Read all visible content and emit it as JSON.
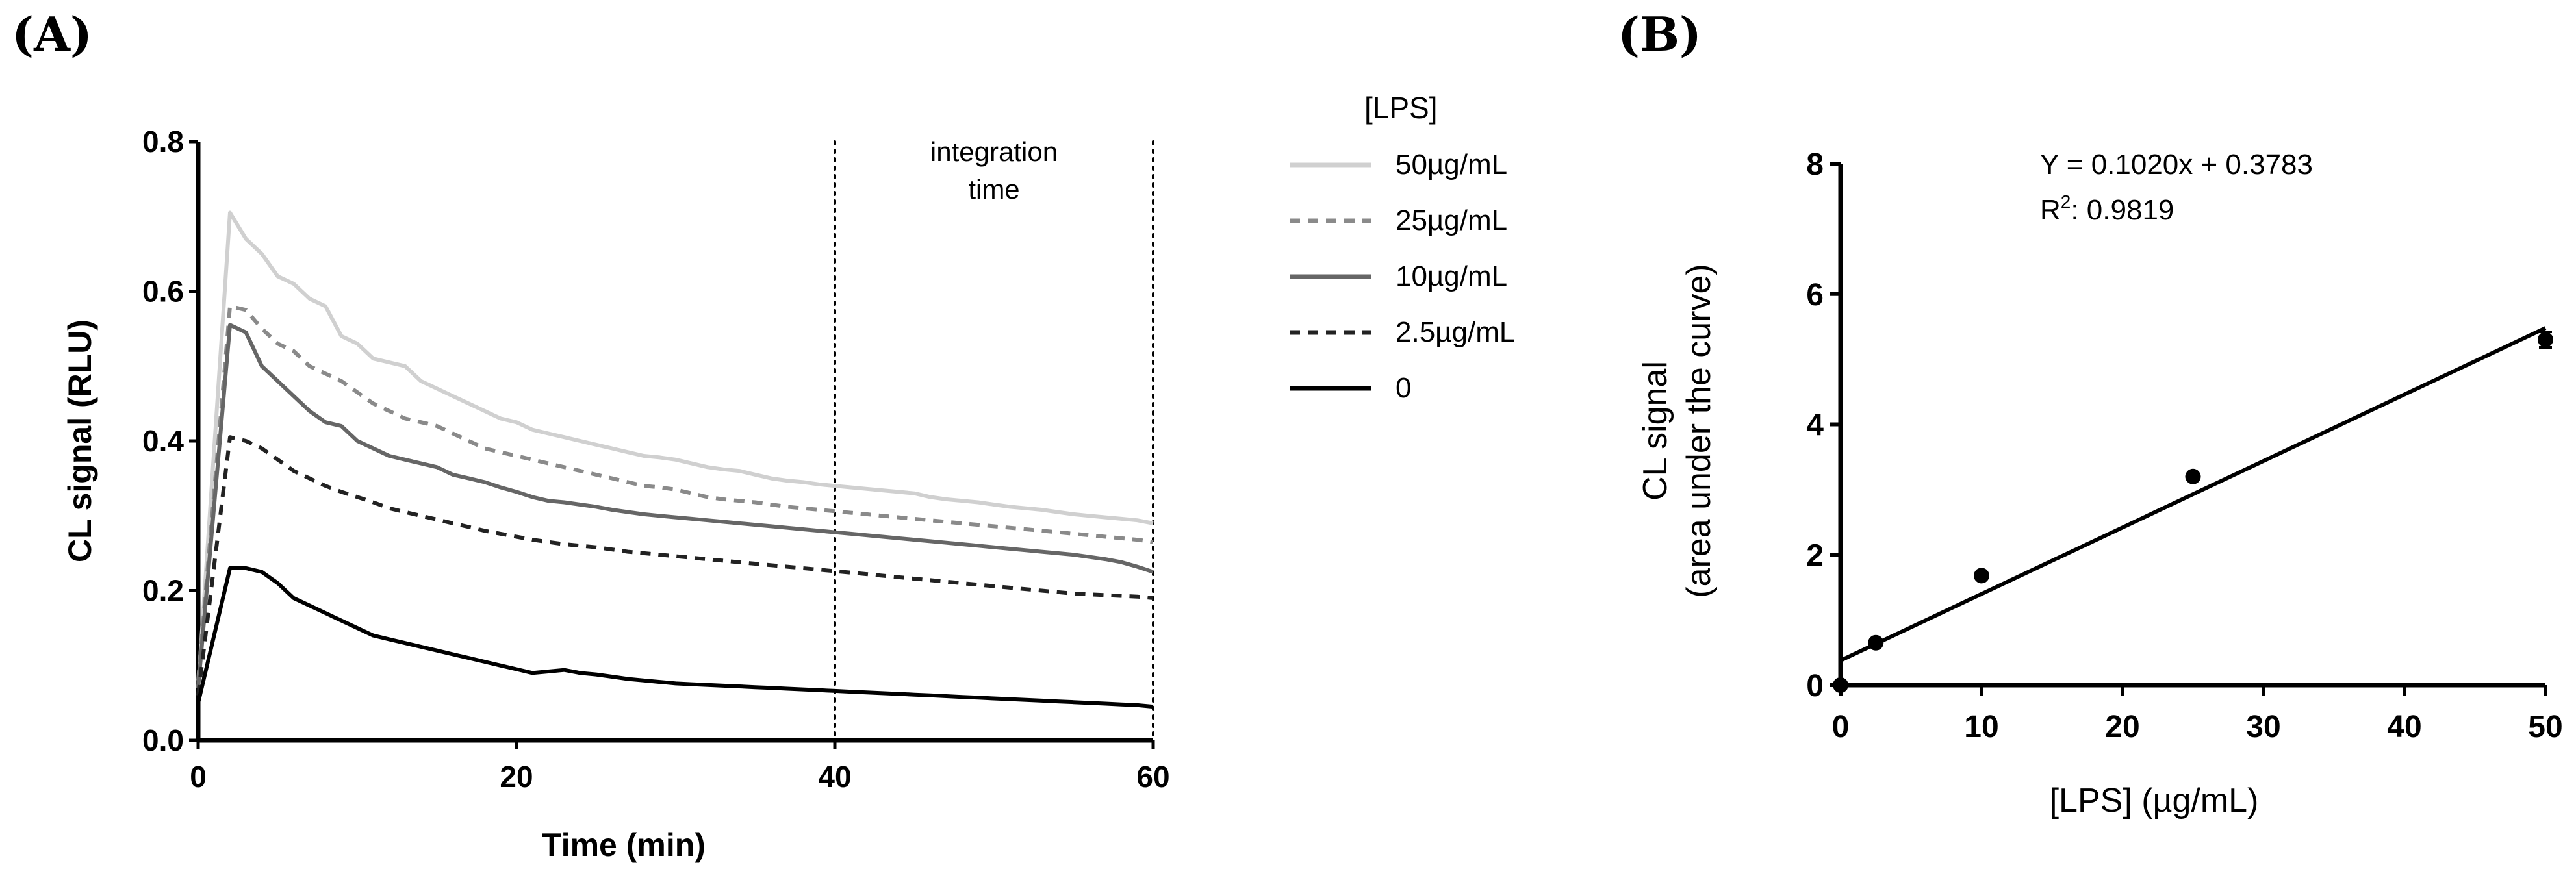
{
  "panels": {
    "a_label": "(A)",
    "b_label": "(B)"
  },
  "chart_data": [
    {
      "type": "line",
      "panel": "A",
      "xlabel": "Time (min)",
      "ylabel": "CL signal (RLU)",
      "xlim": [
        0,
        60
      ],
      "ylim": [
        0,
        0.8
      ],
      "x_ticks": [
        "0",
        "20",
        "40",
        "60"
      ],
      "y_ticks": [
        "0.0",
        "0.2",
        "0.4",
        "0.6",
        "0.8"
      ],
      "annotation": {
        "line1": "integration",
        "line2": "time",
        "x_start": 40,
        "x_end": 60
      },
      "legend_title": "[LPS]",
      "x": [
        0,
        2,
        3,
        4,
        5,
        6,
        7,
        8,
        9,
        10,
        11,
        12,
        13,
        14,
        15,
        16,
        17,
        18,
        19,
        20,
        21,
        22,
        23,
        24,
        25,
        26,
        27,
        28,
        29,
        30,
        31,
        32,
        33,
        34,
        35,
        36,
        37,
        38,
        39,
        40,
        41,
        42,
        43,
        44,
        45,
        46,
        47,
        48,
        49,
        50,
        51,
        52,
        53,
        54,
        55,
        56,
        57,
        58,
        59,
        60
      ],
      "series": [
        {
          "name": "50µg/mL",
          "color": "#d0d0d0",
          "dash": "solid",
          "values": [
            0.07,
            0.705,
            0.67,
            0.65,
            0.62,
            0.61,
            0.59,
            0.58,
            0.54,
            0.53,
            0.51,
            0.505,
            0.5,
            0.48,
            0.47,
            0.46,
            0.45,
            0.44,
            0.43,
            0.425,
            0.415,
            0.41,
            0.405,
            0.4,
            0.395,
            0.39,
            0.385,
            0.38,
            0.378,
            0.375,
            0.37,
            0.365,
            0.362,
            0.36,
            0.355,
            0.35,
            0.347,
            0.345,
            0.342,
            0.34,
            0.338,
            0.336,
            0.334,
            0.332,
            0.33,
            0.325,
            0.322,
            0.32,
            0.318,
            0.315,
            0.312,
            0.31,
            0.308,
            0.305,
            0.302,
            0.3,
            0.298,
            0.296,
            0.294,
            0.29
          ]
        },
        {
          "name": "25µg/mL",
          "color": "#8a8a8a",
          "dash": "dashed",
          "values": [
            0.08,
            0.58,
            0.575,
            0.55,
            0.53,
            0.52,
            0.5,
            0.49,
            0.48,
            0.465,
            0.45,
            0.44,
            0.43,
            0.425,
            0.42,
            0.41,
            0.4,
            0.39,
            0.385,
            0.38,
            0.375,
            0.37,
            0.365,
            0.36,
            0.355,
            0.35,
            0.345,
            0.34,
            0.338,
            0.335,
            0.33,
            0.325,
            0.322,
            0.32,
            0.318,
            0.315,
            0.312,
            0.31,
            0.308,
            0.306,
            0.304,
            0.302,
            0.3,
            0.298,
            0.296,
            0.294,
            0.292,
            0.29,
            0.288,
            0.286,
            0.284,
            0.282,
            0.28,
            0.278,
            0.276,
            0.274,
            0.272,
            0.27,
            0.268,
            0.265
          ]
        },
        {
          "name": "10µg/mL",
          "color": "#666666",
          "dash": "solid",
          "values": [
            0.07,
            0.555,
            0.545,
            0.5,
            0.48,
            0.46,
            0.44,
            0.425,
            0.42,
            0.4,
            0.39,
            0.38,
            0.375,
            0.37,
            0.365,
            0.355,
            0.35,
            0.345,
            0.338,
            0.332,
            0.325,
            0.32,
            0.318,
            0.315,
            0.312,
            0.308,
            0.305,
            0.302,
            0.3,
            0.298,
            0.296,
            0.294,
            0.292,
            0.29,
            0.288,
            0.286,
            0.284,
            0.282,
            0.28,
            0.278,
            0.276,
            0.274,
            0.272,
            0.27,
            0.268,
            0.266,
            0.264,
            0.262,
            0.26,
            0.258,
            0.256,
            0.254,
            0.252,
            0.25,
            0.248,
            0.245,
            0.242,
            0.238,
            0.232,
            0.225
          ]
        },
        {
          "name": "2.5µg/mL",
          "color": "#222222",
          "dash": "dashed",
          "values": [
            0.06,
            0.405,
            0.4,
            0.39,
            0.375,
            0.36,
            0.35,
            0.34,
            0.332,
            0.325,
            0.318,
            0.31,
            0.305,
            0.3,
            0.295,
            0.29,
            0.285,
            0.28,
            0.276,
            0.272,
            0.268,
            0.265,
            0.262,
            0.26,
            0.258,
            0.255,
            0.252,
            0.25,
            0.248,
            0.246,
            0.244,
            0.242,
            0.24,
            0.238,
            0.236,
            0.234,
            0.232,
            0.23,
            0.228,
            0.226,
            0.224,
            0.222,
            0.22,
            0.218,
            0.216,
            0.214,
            0.212,
            0.21,
            0.208,
            0.206,
            0.204,
            0.202,
            0.2,
            0.198,
            0.196,
            0.195,
            0.194,
            0.193,
            0.192,
            0.19
          ]
        },
        {
          "name": "0",
          "color": "#000000",
          "dash": "solid",
          "values": [
            0.05,
            0.23,
            0.23,
            0.225,
            0.21,
            0.19,
            0.18,
            0.17,
            0.16,
            0.15,
            0.14,
            0.135,
            0.13,
            0.125,
            0.12,
            0.115,
            0.11,
            0.105,
            0.1,
            0.095,
            0.09,
            0.092,
            0.094,
            0.09,
            0.088,
            0.085,
            0.082,
            0.08,
            0.078,
            0.076,
            0.075,
            0.074,
            0.073,
            0.072,
            0.071,
            0.07,
            0.069,
            0.068,
            0.067,
            0.066,
            0.065,
            0.064,
            0.063,
            0.062,
            0.061,
            0.06,
            0.059,
            0.058,
            0.057,
            0.056,
            0.055,
            0.054,
            0.053,
            0.052,
            0.051,
            0.05,
            0.049,
            0.048,
            0.047,
            0.045
          ]
        }
      ]
    },
    {
      "type": "scatter",
      "panel": "B",
      "xlabel": "[LPS] (µg/mL)",
      "ylabel_line1": "CL signal",
      "ylabel_line2": "(area under the curve)",
      "xlim": [
        0,
        50
      ],
      "ylim": [
        0,
        8
      ],
      "x_ticks": [
        "0",
        "10",
        "20",
        "30",
        "40",
        "50"
      ],
      "y_ticks": [
        "0",
        "2",
        "4",
        "6",
        "8"
      ],
      "points": [
        {
          "x": 0,
          "y": 0.0
        },
        {
          "x": 2.5,
          "y": 0.65
        },
        {
          "x": 10,
          "y": 1.68
        },
        {
          "x": 25,
          "y": 3.2
        },
        {
          "x": 50,
          "y": 5.3,
          "err": 0.12
        }
      ],
      "fit": {
        "slope": 0.102,
        "intercept": 0.3783,
        "x_range": [
          0,
          50
        ]
      },
      "equation": "Y = 0.1020x + 0.3783",
      "r2_label": "R",
      "r2_sup": "2",
      "r2_value": ": 0.9819"
    }
  ]
}
